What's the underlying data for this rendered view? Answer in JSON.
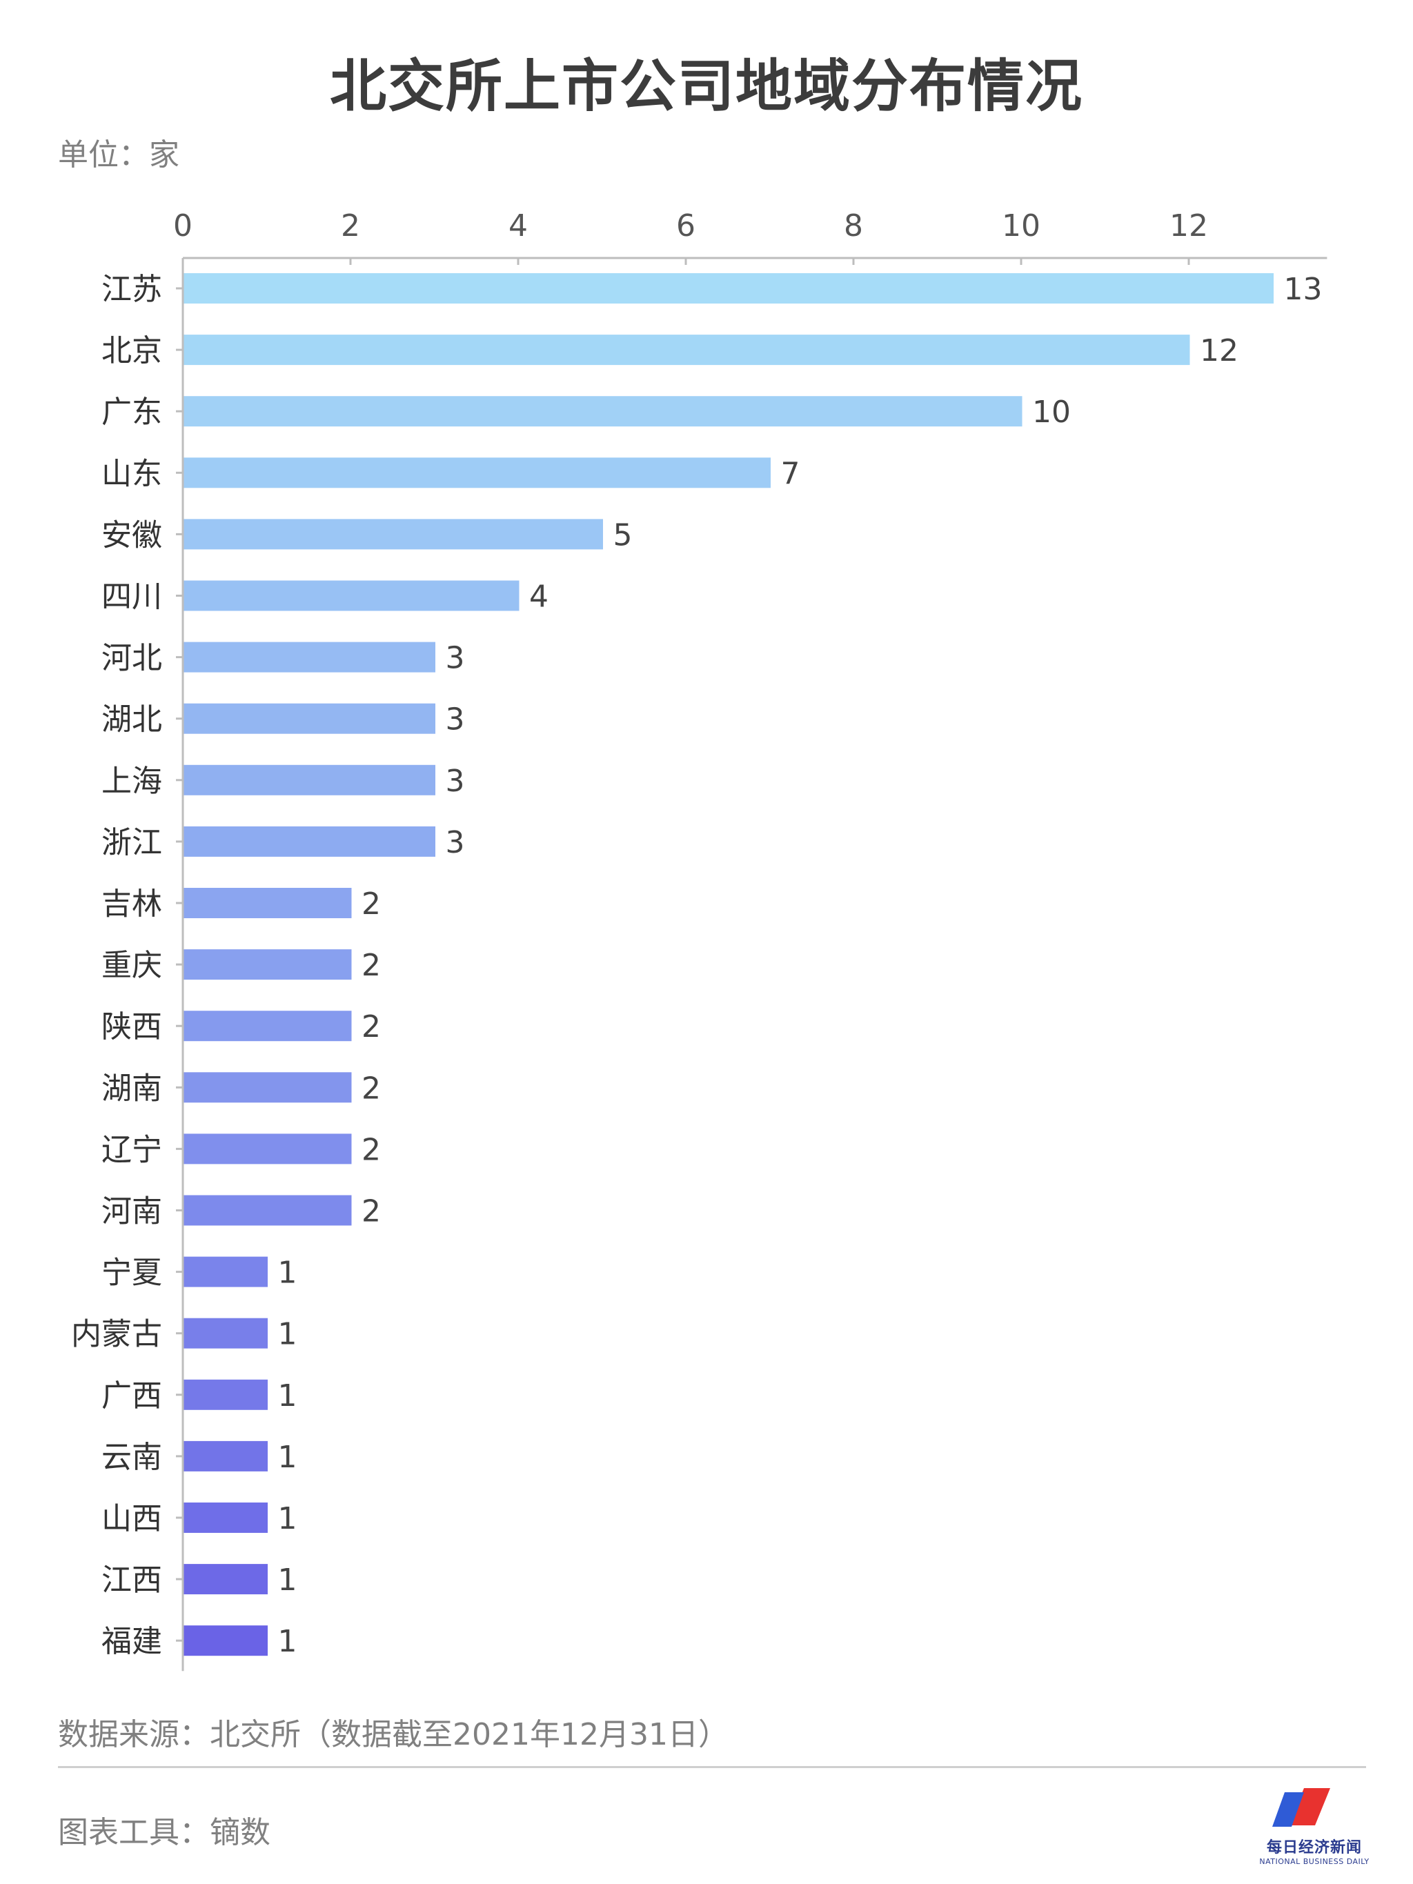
{
  "header": {
    "title": "北交所上市公司地域分布情况",
    "unit": "单位：家"
  },
  "chart_data": {
    "type": "bar",
    "orientation": "horizontal",
    "title": "北交所上市公司地域分布情况",
    "xlabel": "",
    "ylabel": "",
    "xlim": [
      0,
      13.6
    ],
    "x_ticks": [
      0,
      2,
      4,
      6,
      8,
      10,
      12
    ],
    "grid": false,
    "categories": [
      "江苏",
      "北京",
      "广东",
      "山东",
      "安徽",
      "四川",
      "河北",
      "湖北",
      "上海",
      "浙江",
      "吉林",
      "重庆",
      "陕西",
      "湖南",
      "辽宁",
      "河南",
      "宁夏",
      "内蒙古",
      "广西",
      "云南",
      "山西",
      "江西",
      "福建"
    ],
    "values": [
      13,
      12,
      10,
      7,
      5,
      4,
      3,
      3,
      3,
      3,
      2,
      2,
      2,
      2,
      2,
      2,
      1,
      1,
      1,
      1,
      1,
      1,
      1
    ],
    "bar_color_start": "#a6dcf8",
    "bar_color_end": "#6a63e6"
  },
  "footer": {
    "source": "数据来源：北交所（数据截至2021年12月31日）",
    "tool": "图表工具：镝数",
    "logo_text": "每日经济新闻",
    "logo_sub": "NATIONAL BUSINESS DAILY",
    "logo_colors": {
      "red": "#e8322f",
      "blue": "#2f5bd6"
    }
  }
}
